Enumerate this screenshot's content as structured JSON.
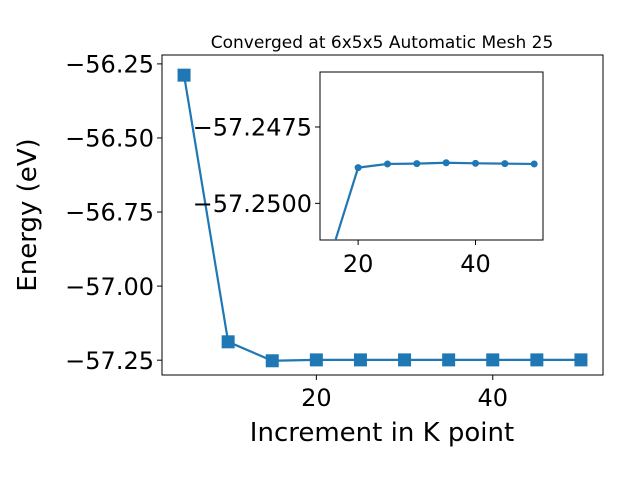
{
  "chart_data": [
    {
      "type": "line",
      "title": "Converged at 6x5x5 Automatic Mesh 25",
      "xlabel": "Increment in K point",
      "ylabel": "Energy (eV)",
      "x": [
        5,
        10,
        15,
        20,
        25,
        30,
        35,
        40,
        45,
        50
      ],
      "series": [
        {
          "values": [
            -56.288,
            -57.188,
            -57.252,
            -57.249,
            -57.249,
            -57.249,
            -57.249,
            -57.249,
            -57.249,
            -57.249
          ]
        }
      ],
      "xlim": [
        2.5,
        52.5
      ],
      "ylim": [
        -57.3,
        -56.22
      ],
      "xticks": [
        20,
        40
      ],
      "xtick_labels": [
        "20",
        "40"
      ],
      "yticks": [
        -56.25,
        -56.5,
        -56.75,
        -57.0,
        -57.25
      ],
      "ytick_labels": [
        "−56.25",
        "−56.50",
        "−56.75",
        "−57.00",
        "−57.25"
      ],
      "marker": "square",
      "color": "#1f77b4",
      "grid": false
    },
    {
      "type": "line",
      "title": "",
      "xlabel": "",
      "ylabel": "",
      "x": [
        15,
        20,
        25,
        30,
        35,
        40,
        45,
        50
      ],
      "series": [
        {
          "values": [
            -57.2519,
            -57.24883,
            -57.24871,
            -57.2487,
            -57.24867,
            -57.24869,
            -57.2487,
            -57.24871
          ]
        }
      ],
      "xlim": [
        13.5,
        51.5
      ],
      "ylim": [
        -57.2512,
        -57.2457
      ],
      "xticks": [
        20,
        40
      ],
      "xtick_labels": [
        "20",
        "40"
      ],
      "yticks": [
        -57.25,
        -57.2475
      ],
      "ytick_labels": [
        "−57.2500",
        "−57.2475"
      ],
      "marker": "circle",
      "color": "#1f77b4",
      "grid": false
    }
  ]
}
